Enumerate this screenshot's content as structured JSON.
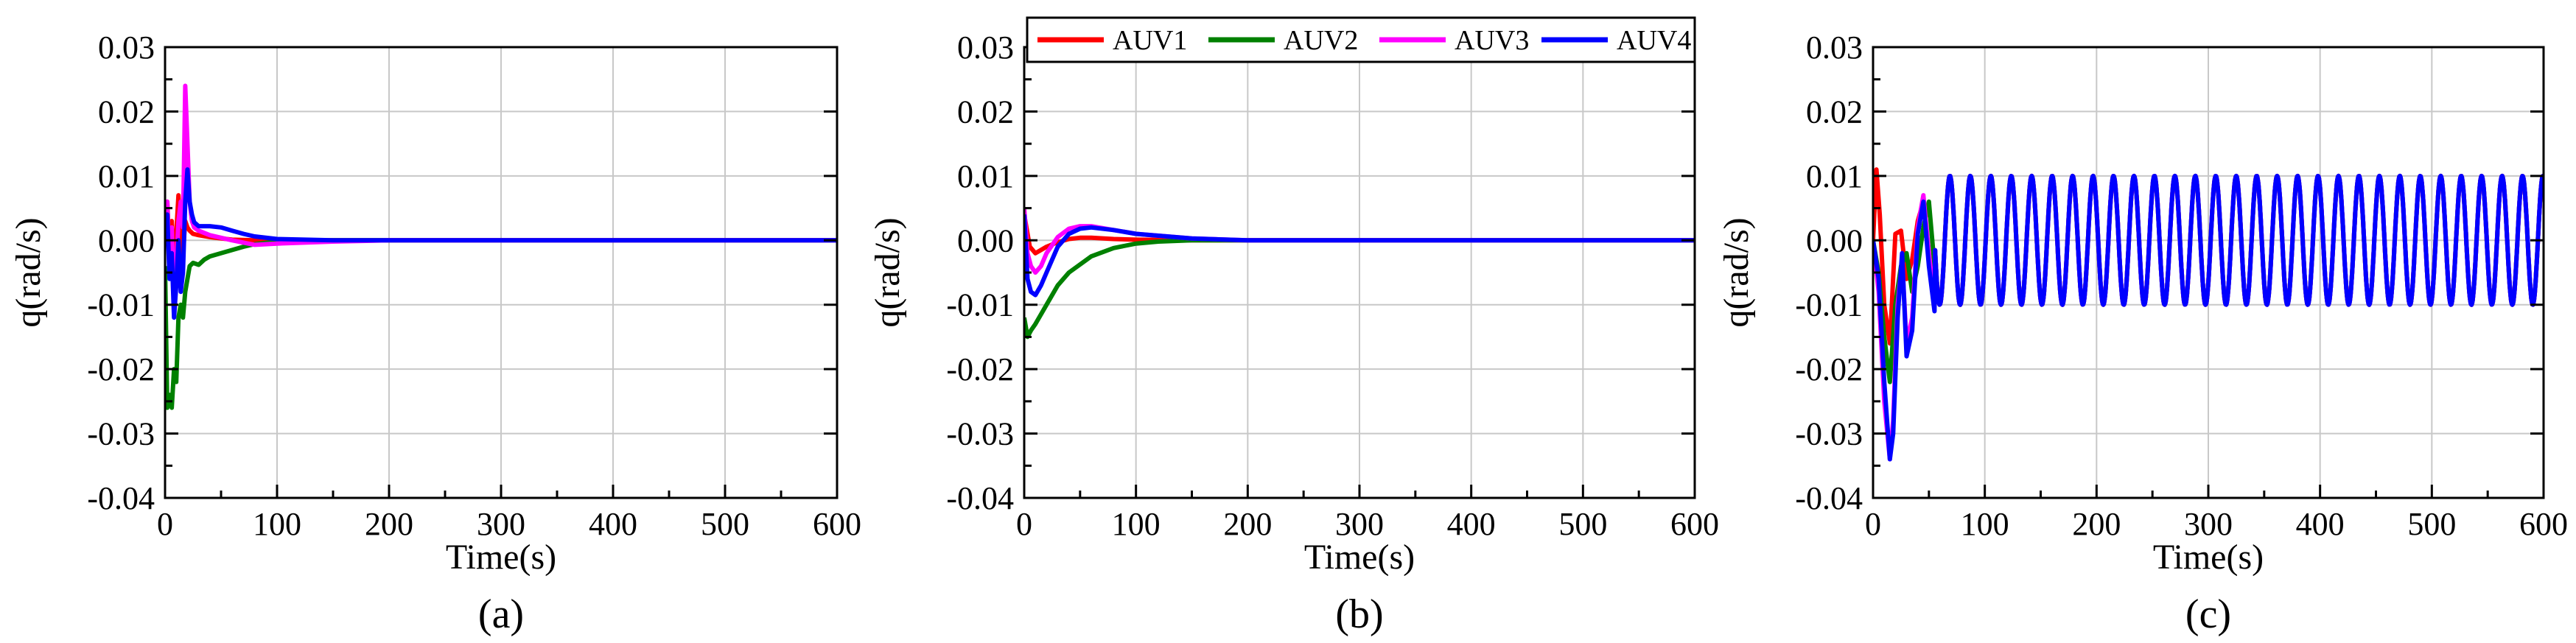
{
  "chart_data": [
    {
      "type": "line",
      "panel_label": "(a)",
      "xlabel": "Time(s)",
      "ylabel": "q(rad/s)",
      "xlim": [
        0,
        600
      ],
      "ylim": [
        -0.04,
        0.03
      ],
      "xticks": [
        "0",
        "100",
        "200",
        "300",
        "400",
        "500",
        "600"
      ],
      "yticks": [
        "0.03",
        "0.02",
        "0.01",
        "0.00",
        "-0.01",
        "-0.02",
        "-0.03",
        "-0.04"
      ],
      "grid": true,
      "series": [
        {
          "name": "AUV1",
          "color": "#ff0000",
          "x": [
            0,
            2,
            4,
            6,
            8,
            10,
            12,
            14,
            16,
            18,
            20,
            22,
            25,
            30,
            40,
            60,
            80,
            100,
            150,
            200,
            600
          ],
          "y": [
            0.0,
            0.006,
            -0.002,
            0.003,
            -0.006,
            0.001,
            0.007,
            0.0,
            -0.002,
            0.003,
            0.002,
            0.0015,
            0.001,
            0.0008,
            0.0005,
            0.0001,
            0.0,
            0.0,
            0.0,
            0.0,
            0.0
          ]
        },
        {
          "name": "AUV2",
          "color": "#008000",
          "x": [
            0,
            2,
            4,
            6,
            8,
            10,
            12,
            14,
            16,
            18,
            20,
            22,
            25,
            30,
            35,
            40,
            50,
            60,
            70,
            80,
            100,
            150,
            600
          ],
          "y": [
            -0.004,
            -0.026,
            -0.024,
            -0.026,
            -0.02,
            -0.022,
            -0.012,
            -0.01,
            -0.012,
            -0.008,
            -0.006,
            -0.004,
            -0.0035,
            -0.0038,
            -0.003,
            -0.0025,
            -0.002,
            -0.0015,
            -0.001,
            -0.0006,
            -0.0002,
            0.0,
            0.0
          ]
        },
        {
          "name": "AUV3",
          "color": "#ff00ff",
          "x": [
            0,
            2,
            4,
            6,
            8,
            10,
            12,
            14,
            16,
            18,
            20,
            22,
            24,
            26,
            30,
            40,
            60,
            80,
            100,
            150,
            200,
            600
          ],
          "y": [
            0.0,
            0.006,
            -0.004,
            0.002,
            -0.008,
            -0.004,
            0.003,
            0.006,
            0.002,
            0.024,
            0.015,
            0.006,
            0.003,
            0.002,
            0.0015,
            0.0008,
            0.0,
            -0.0007,
            -0.0005,
            -0.0002,
            0.0,
            0.0
          ]
        },
        {
          "name": "AUV4",
          "color": "#0000ff",
          "x": [
            0,
            2,
            4,
            6,
            8,
            10,
            12,
            14,
            16,
            18,
            20,
            22,
            24,
            26,
            30,
            40,
            50,
            60,
            70,
            80,
            100,
            150,
            200,
            600
          ],
          "y": [
            0.0,
            0.004,
            -0.006,
            -0.002,
            -0.012,
            -0.007,
            0.0,
            -0.008,
            -0.005,
            0.006,
            0.011,
            0.006,
            0.004,
            0.0028,
            0.0022,
            0.0022,
            0.002,
            0.0015,
            0.001,
            0.0006,
            0.0002,
            0.0,
            0.0,
            0.0
          ]
        }
      ]
    },
    {
      "type": "line",
      "panel_label": "(b)",
      "xlabel": "Time(s)",
      "ylabel": "q(rad/s)",
      "xlim": [
        0,
        600
      ],
      "ylim": [
        -0.04,
        0.03
      ],
      "xticks": [
        "0",
        "100",
        "200",
        "300",
        "400",
        "500",
        "600"
      ],
      "yticks": [
        "0.03",
        "0.02",
        "0.01",
        "0.00",
        "-0.01",
        "-0.02",
        "-0.03",
        "-0.04"
      ],
      "grid": true,
      "legend_position": "top",
      "series": [
        {
          "name": "AUV1",
          "color": "#ff0000",
          "x": [
            0,
            5,
            10,
            15,
            20,
            30,
            40,
            50,
            60,
            80,
            100,
            150,
            200,
            600
          ],
          "y": [
            0.004,
            -0.001,
            -0.002,
            -0.0015,
            -0.001,
            -0.0003,
            0.0002,
            0.0004,
            0.0004,
            0.0002,
            0.0001,
            0.0,
            0.0,
            0.0
          ]
        },
        {
          "name": "AUV2",
          "color": "#008000",
          "x": [
            0,
            3,
            6,
            10,
            15,
            20,
            30,
            40,
            60,
            80,
            100,
            120,
            150,
            200,
            600
          ],
          "y": [
            -0.012,
            -0.015,
            -0.014,
            -0.013,
            -0.0115,
            -0.01,
            -0.007,
            -0.005,
            -0.0025,
            -0.0012,
            -0.0005,
            -0.0002,
            0.0,
            0.0,
            0.0
          ]
        },
        {
          "name": "AUV3",
          "color": "#ff00ff",
          "x": [
            0,
            3,
            6,
            10,
            15,
            20,
            30,
            40,
            50,
            60,
            80,
            100,
            150,
            200,
            600
          ],
          "y": [
            0.005,
            -0.002,
            -0.004,
            -0.005,
            -0.004,
            -0.002,
            0.0005,
            0.0018,
            0.0022,
            0.0022,
            0.0016,
            0.001,
            0.0003,
            0.0,
            0.0
          ]
        },
        {
          "name": "AUV4",
          "color": "#0000ff",
          "x": [
            0,
            3,
            6,
            10,
            15,
            20,
            30,
            40,
            50,
            60,
            80,
            100,
            150,
            200,
            600
          ],
          "y": [
            0.004,
            -0.006,
            -0.008,
            -0.0085,
            -0.007,
            -0.005,
            -0.001,
            0.001,
            0.0018,
            0.002,
            0.0016,
            0.001,
            0.0003,
            0.0,
            0.0
          ]
        }
      ]
    },
    {
      "type": "line",
      "panel_label": "(c)",
      "xlabel": "Time(s)",
      "ylabel": "q(rad/s)",
      "xlim": [
        0,
        600
      ],
      "ylim": [
        -0.04,
        0.03
      ],
      "xticks": [
        "0",
        "100",
        "200",
        "300",
        "400",
        "500",
        "600"
      ],
      "yticks": [
        "0.03",
        "0.02",
        "0.01",
        "0.00",
        "-0.01",
        "-0.02",
        "-0.03",
        "-0.04"
      ],
      "grid": true,
      "series": [
        {
          "name": "AUV1",
          "color": "#ff0000",
          "x": [
            0,
            3,
            6,
            10,
            15,
            20,
            25,
            30,
            35,
            40,
            45,
            50,
            55
          ],
          "y": [
            0.0,
            0.011,
            0.004,
            -0.01,
            -0.016,
            0.001,
            0.0015,
            -0.006,
            -0.003,
            0.003,
            0.006,
            -0.002,
            -0.01
          ]
        },
        {
          "name": "AUV2",
          "color": "#008000",
          "x": [
            0,
            5,
            10,
            15,
            20,
            25,
            30,
            35,
            40,
            45,
            50,
            55
          ],
          "y": [
            0.0,
            -0.005,
            -0.015,
            -0.022,
            -0.01,
            -0.004,
            -0.002,
            -0.008,
            -0.004,
            0.002,
            0.006,
            -0.004
          ]
        },
        {
          "name": "AUV3",
          "color": "#ff00ff",
          "x": [
            0,
            5,
            10,
            15,
            18,
            22,
            26,
            30,
            35,
            40,
            45,
            50,
            55
          ],
          "y": [
            0.0,
            -0.008,
            -0.025,
            -0.034,
            -0.028,
            -0.01,
            -0.003,
            -0.016,
            -0.012,
            0.002,
            0.007,
            -0.002,
            -0.01
          ]
        },
        {
          "name": "AUV4",
          "color": "#0000ff",
          "x": [
            0,
            5,
            10,
            15,
            18,
            22,
            26,
            30,
            35,
            40,
            45,
            50,
            55
          ],
          "y": [
            0.0,
            -0.006,
            -0.022,
            -0.034,
            -0.03,
            -0.012,
            -0.002,
            -0.018,
            -0.014,
            0.001,
            0.006,
            -0.004,
            -0.011
          ]
        }
      ],
      "steady_oscillation": {
        "t_start": 55,
        "t_end": 600,
        "amplitude": 0.01,
        "period": 18.3,
        "phase_t0": 45.9
      }
    }
  ]
}
